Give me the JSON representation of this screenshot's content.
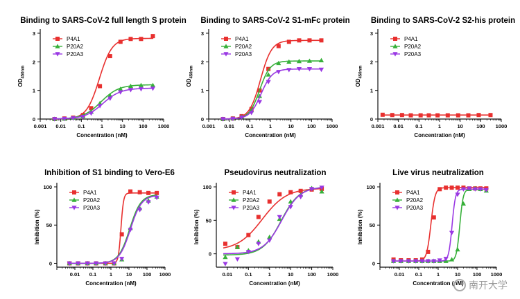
{
  "watermark": "南开大学",
  "colors": {
    "P4A1": "#e8302f",
    "P20A2": "#37b03a",
    "P20A3": "#9a38e3"
  },
  "chart_data": [
    {
      "type": "line",
      "title": "Binding to SARS-CoV-2 full length S protein",
      "xlabel": "Concentration (nM)",
      "ylabel": "OD450nm",
      "ylabel_main": "OD",
      "ylabel_sub": "450nm",
      "xscale": "log",
      "xlim": [
        0.001,
        1000
      ],
      "ylim": [
        0,
        3
      ],
      "xticks": [
        0.001,
        0.01,
        0.1,
        1,
        10,
        100,
        1000
      ],
      "xtick_labels": [
        "0.001",
        "0.01",
        "0.1",
        "1",
        "10",
        "100",
        "1000"
      ],
      "yticks": [
        0,
        1,
        2,
        3
      ],
      "ytick_labels": [
        "0",
        "1",
        "2",
        "3"
      ],
      "legend": "top-left",
      "series": [
        {
          "name": "P4A1",
          "marker": "square",
          "x": [
            0.005,
            0.015,
            0.04,
            0.12,
            0.3,
            0.8,
            2.5,
            8,
            25,
            80,
            300
          ],
          "y": [
            0.0,
            0.02,
            0.05,
            0.14,
            0.38,
            1.15,
            2.2,
            2.7,
            2.8,
            2.8,
            2.9
          ],
          "fit": {
            "bottom": 0.0,
            "top": 2.82,
            "ec50": 0.75,
            "hill": 1.4
          }
        },
        {
          "name": "P20A2",
          "marker": "triangle",
          "x": [
            0.005,
            0.015,
            0.04,
            0.12,
            0.3,
            0.8,
            2.5,
            8,
            25,
            80,
            300
          ],
          "y": [
            0.0,
            0.01,
            0.04,
            0.1,
            0.25,
            0.55,
            0.82,
            1.05,
            1.15,
            1.18,
            1.18
          ],
          "fit": {
            "bottom": 0.0,
            "top": 1.2,
            "ec50": 0.9,
            "hill": 1.0
          }
        },
        {
          "name": "P20A3",
          "marker": "triangle-down",
          "x": [
            0.005,
            0.015,
            0.04,
            0.12,
            0.3,
            0.8,
            2.5,
            8,
            25,
            80,
            300
          ],
          "y": [
            0.0,
            0.01,
            0.03,
            0.08,
            0.2,
            0.46,
            0.72,
            0.94,
            1.02,
            1.05,
            1.07
          ],
          "fit": {
            "bottom": 0.0,
            "top": 1.08,
            "ec50": 1.1,
            "hill": 1.0
          }
        }
      ]
    },
    {
      "type": "line",
      "title": "Binding to SARS-CoV-2 S1-mFc protein",
      "xlabel": "Concentration (nM)",
      "ylabel": "OD450nm",
      "ylabel_main": "OD",
      "ylabel_sub": "450nm",
      "xscale": "log",
      "xlim": [
        0.001,
        1000
      ],
      "ylim": [
        0,
        3
      ],
      "xticks": [
        0.001,
        0.01,
        0.1,
        1,
        10,
        100,
        1000
      ],
      "xtick_labels": [
        "0.001",
        "0.01",
        "0.1",
        "1",
        "10",
        "100",
        "1000"
      ],
      "yticks": [
        0,
        1,
        2,
        3
      ],
      "ytick_labels": [
        "0",
        "1",
        "2",
        "3"
      ],
      "legend": "top-left",
      "series": [
        {
          "name": "P4A1",
          "marker": "square",
          "x": [
            0.005,
            0.015,
            0.04,
            0.12,
            0.3,
            0.8,
            2.5,
            8,
            25,
            80,
            300
          ],
          "y": [
            0.0,
            0.02,
            0.1,
            0.35,
            1.0,
            1.75,
            2.55,
            2.7,
            2.75,
            2.75,
            2.75
          ],
          "fit": {
            "bottom": 0.0,
            "top": 2.75,
            "ec50": 0.33,
            "hill": 1.6
          }
        },
        {
          "name": "P20A2",
          "marker": "triangle",
          "x": [
            0.005,
            0.015,
            0.04,
            0.12,
            0.3,
            0.8,
            2.5,
            8,
            25,
            80,
            300
          ],
          "y": [
            0.0,
            0.02,
            0.08,
            0.3,
            0.8,
            1.55,
            1.95,
            2.0,
            2.02,
            2.03,
            2.05
          ],
          "fit": {
            "bottom": 0.0,
            "top": 2.03,
            "ec50": 0.3,
            "hill": 1.7
          }
        },
        {
          "name": "P20A3",
          "marker": "triangle-down",
          "x": [
            0.005,
            0.015,
            0.04,
            0.12,
            0.3,
            0.8,
            2.5,
            8,
            25,
            80,
            300
          ],
          "y": [
            0.0,
            0.01,
            0.06,
            0.22,
            0.6,
            1.3,
            1.65,
            1.72,
            1.75,
            1.75,
            1.73
          ],
          "fit": {
            "bottom": 0.0,
            "top": 1.75,
            "ec50": 0.35,
            "hill": 1.6
          }
        }
      ]
    },
    {
      "type": "line",
      "title": "Binding to SARS-CoV-2 S2-his protein",
      "xlabel": "Concentration (nM)",
      "ylabel": "OD450nm",
      "ylabel_main": "OD",
      "ylabel_sub": "450nm",
      "xscale": "log",
      "xlim": [
        0.001,
        1000
      ],
      "ylim": [
        0,
        3
      ],
      "xticks": [
        0.001,
        0.01,
        0.1,
        1,
        10,
        100,
        1000
      ],
      "xtick_labels": [
        "0.001",
        "0.01",
        "0.1",
        "1",
        "10",
        "100",
        "1000"
      ],
      "yticks": [
        0,
        1,
        2,
        3
      ],
      "ytick_labels": [
        "0",
        "1",
        "2",
        "3"
      ],
      "legend": "top-left",
      "series": [
        {
          "name": "P4A1",
          "marker": "square",
          "x": [
            0.0017,
            0.005,
            0.015,
            0.04,
            0.12,
            0.3,
            0.8,
            2.5,
            8,
            25,
            80,
            300
          ],
          "y": [
            0.15,
            0.14,
            0.14,
            0.13,
            0.13,
            0.13,
            0.13,
            0.13,
            0.13,
            0.13,
            0.14,
            0.14
          ],
          "fit": {
            "bottom": 0.14,
            "top": 0.14,
            "ec50": 1,
            "hill": 1
          }
        },
        {
          "name": "P20A2",
          "marker": "triangle",
          "x": [],
          "y": []
        },
        {
          "name": "P20A3",
          "marker": "triangle-down",
          "x": [],
          "y": []
        }
      ]
    },
    {
      "type": "line",
      "title": "Inhibition of S1 binding to Vero-E6",
      "xlabel": "Concentration (nM)",
      "ylabel": "Inhibition (%)",
      "xscale": "log",
      "xlim": [
        0.001,
        1000
      ],
      "ylim": [
        -5,
        100
      ],
      "xticks": [
        0.01,
        0.1,
        1,
        10,
        100,
        1000
      ],
      "xtick_labels": [
        "0.01",
        "0.1",
        "1",
        "10",
        "100",
        "1000"
      ],
      "yticks": [
        0,
        50,
        100
      ],
      "ytick_labels": [
        "0",
        "50",
        "100"
      ],
      "legend": "top-left",
      "series": [
        {
          "name": "P4A1",
          "marker": "square",
          "x": [
            0.005,
            0.015,
            0.05,
            0.15,
            0.5,
            1.5,
            4,
            12,
            40,
            120,
            350
          ],
          "y": [
            0,
            0,
            0,
            0,
            0,
            0,
            38,
            94,
            93,
            92,
            92
          ],
          "fit": {
            "bottom": 0,
            "top": 92,
            "ec50": 3.6,
            "hill": 6
          }
        },
        {
          "name": "P20A2",
          "marker": "triangle",
          "x": [
            0.005,
            0.015,
            0.05,
            0.15,
            0.5,
            1.5,
            4,
            12,
            40,
            120,
            350
          ],
          "y": [
            0,
            0,
            0,
            0,
            0,
            0,
            5,
            46,
            72,
            82,
            87
          ],
          "fit": {
            "bottom": 0,
            "top": 90,
            "ec50": 11,
            "hill": 1.4
          }
        },
        {
          "name": "P20A3",
          "marker": "triangle-down",
          "x": [
            0.005,
            0.015,
            0.05,
            0.15,
            0.5,
            1.5,
            4,
            12,
            40,
            120,
            350
          ],
          "y": [
            0,
            0,
            0,
            0,
            0,
            0,
            6,
            44,
            70,
            80,
            86
          ],
          "fit": {
            "bottom": 0,
            "top": 89,
            "ec50": 12,
            "hill": 1.4
          }
        }
      ]
    },
    {
      "type": "line",
      "title": "Pseudovirus neutralization",
      "xlabel": "Concentration (nM)",
      "ylabel": "Inhibition (%)",
      "xscale": "log",
      "xlim": [
        0.003,
        1000
      ],
      "ylim": [
        -20,
        100
      ],
      "xticks": [
        0.01,
        0.1,
        1,
        10,
        100,
        1000
      ],
      "xtick_labels": [
        "0.01",
        "0.1",
        "1",
        "10",
        "100",
        "1000"
      ],
      "yticks": [
        0,
        50,
        100
      ],
      "ytick_labels": [
        "0",
        "50",
        "100"
      ],
      "legend": "top-left",
      "series": [
        {
          "name": "P4A1",
          "marker": "square",
          "x": [
            0.008,
            0.03,
            0.1,
            0.3,
            1,
            3,
            10,
            30,
            100,
            300
          ],
          "y": [
            15,
            10,
            28,
            55,
            78,
            89,
            92,
            94,
            96,
            97
          ],
          "fit": {
            "bottom": 5,
            "top": 98,
            "ec50": 0.45,
            "hill": 0.75
          }
        },
        {
          "name": "P20A2",
          "marker": "triangle",
          "x": [
            0.008,
            0.03,
            0.1,
            0.3,
            1,
            3,
            10,
            30,
            100,
            300
          ],
          "y": [
            -5,
            10,
            5,
            18,
            25,
            52,
            78,
            88,
            98,
            93
          ],
          "fit": {
            "bottom": -2,
            "top": 100,
            "ec50": 3.5,
            "hill": 1.0
          }
        },
        {
          "name": "P20A3",
          "marker": "triangle-down",
          "x": [
            0.008,
            0.03,
            0.1,
            0.3,
            1,
            3,
            10,
            30,
            100,
            300
          ],
          "y": [
            -15,
            -8,
            3,
            15,
            20,
            55,
            70,
            85,
            97,
            99
          ],
          "fit": {
            "bottom": 0,
            "top": 100,
            "ec50": 3.8,
            "hill": 1.0
          }
        }
      ]
    },
    {
      "type": "line",
      "title": "Live virus neutralization",
      "xlabel": "Concentration (nM)",
      "ylabel": "Inhibition (%)",
      "xscale": "log",
      "xlim": [
        0.001,
        1000
      ],
      "ylim": [
        -5,
        100
      ],
      "xticks": [
        0.01,
        0.1,
        1,
        10,
        100,
        1000
      ],
      "xtick_labels": [
        "0.01",
        "0.1",
        "1",
        "10",
        "100",
        "1000"
      ],
      "yticks": [
        0,
        50,
        100
      ],
      "ytick_labels": [
        "0",
        "50",
        "100"
      ],
      "legend": "top-left",
      "series": [
        {
          "name": "P4A1",
          "marker": "square",
          "x": [
            0.005,
            0.012,
            0.03,
            0.07,
            0.15,
            0.3,
            0.6,
            1.2,
            2.5,
            5,
            10,
            20,
            40,
            80,
            150,
            300
          ],
          "y": [
            5,
            4,
            4,
            4,
            5,
            15,
            60,
            97,
            99,
            99,
            99,
            99,
            98,
            98,
            98,
            98
          ],
          "fit": {
            "bottom": 3,
            "top": 99,
            "ec50": 0.42,
            "hill": 4
          }
        },
        {
          "name": "P20A2",
          "marker": "triangle",
          "x": [
            0.005,
            0.012,
            0.03,
            0.07,
            0.15,
            0.3,
            0.6,
            1.2,
            2.5,
            5,
            10,
            20,
            40,
            80,
            150,
            300
          ],
          "y": [
            3,
            3,
            3,
            3,
            3,
            3,
            3,
            3,
            3,
            5,
            18,
            78,
            97,
            98,
            97,
            95
          ],
          "fit": {
            "bottom": 3,
            "top": 97,
            "ec50": 13,
            "hill": 5
          }
        },
        {
          "name": "P20A3",
          "marker": "triangle-down",
          "x": [
            0.005,
            0.012,
            0.03,
            0.07,
            0.15,
            0.3,
            0.6,
            1.2,
            2.5,
            5,
            10,
            20,
            40,
            80,
            150,
            300
          ],
          "y": [
            3,
            3,
            3,
            3,
            3,
            3,
            3,
            4,
            6,
            40,
            90,
            97,
            98,
            97,
            97,
            96
          ],
          "fit": {
            "bottom": 3,
            "top": 97,
            "ec50": 5.2,
            "hill": 5
          }
        }
      ]
    }
  ]
}
